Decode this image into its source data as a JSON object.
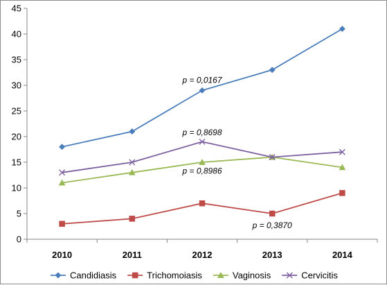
{
  "chart_data": {
    "type": "line",
    "categories": [
      "2010",
      "2011",
      "2012",
      "2013",
      "2014"
    ],
    "series": [
      {
        "name": "Candidiasis",
        "values": [
          18,
          21,
          29,
          33,
          41
        ],
        "color": "#4a7ebb",
        "marker": "diamond"
      },
      {
        "name": "Trichomoiasis",
        "values": [
          3,
          4,
          7,
          5,
          9
        ],
        "color": "#be4b48",
        "marker": "square"
      },
      {
        "name": "Vaginosis",
        "values": [
          11,
          13,
          15,
          16,
          14
        ],
        "color": "#98b954",
        "marker": "triangle"
      },
      {
        "name": "Cervicitis",
        "values": [
          13,
          15,
          19,
          16,
          17
        ],
        "color": "#7d60a0",
        "marker": "x"
      }
    ],
    "ylim": [
      0,
      45
    ],
    "yticks": [
      0,
      5,
      10,
      15,
      20,
      25,
      30,
      35,
      40,
      45
    ],
    "grid": false,
    "legend": "bottom",
    "annotations": [
      {
        "text": "p = 0,0167",
        "x": "2012",
        "y": 31
      },
      {
        "text": "p = 0,8698",
        "x": "2012",
        "y": 20.8
      },
      {
        "text": "p = 0,8986",
        "x": "2012",
        "y": 13.3
      },
      {
        "text": "p = 0,3870",
        "x": "2013",
        "y": 2.7
      }
    ]
  }
}
